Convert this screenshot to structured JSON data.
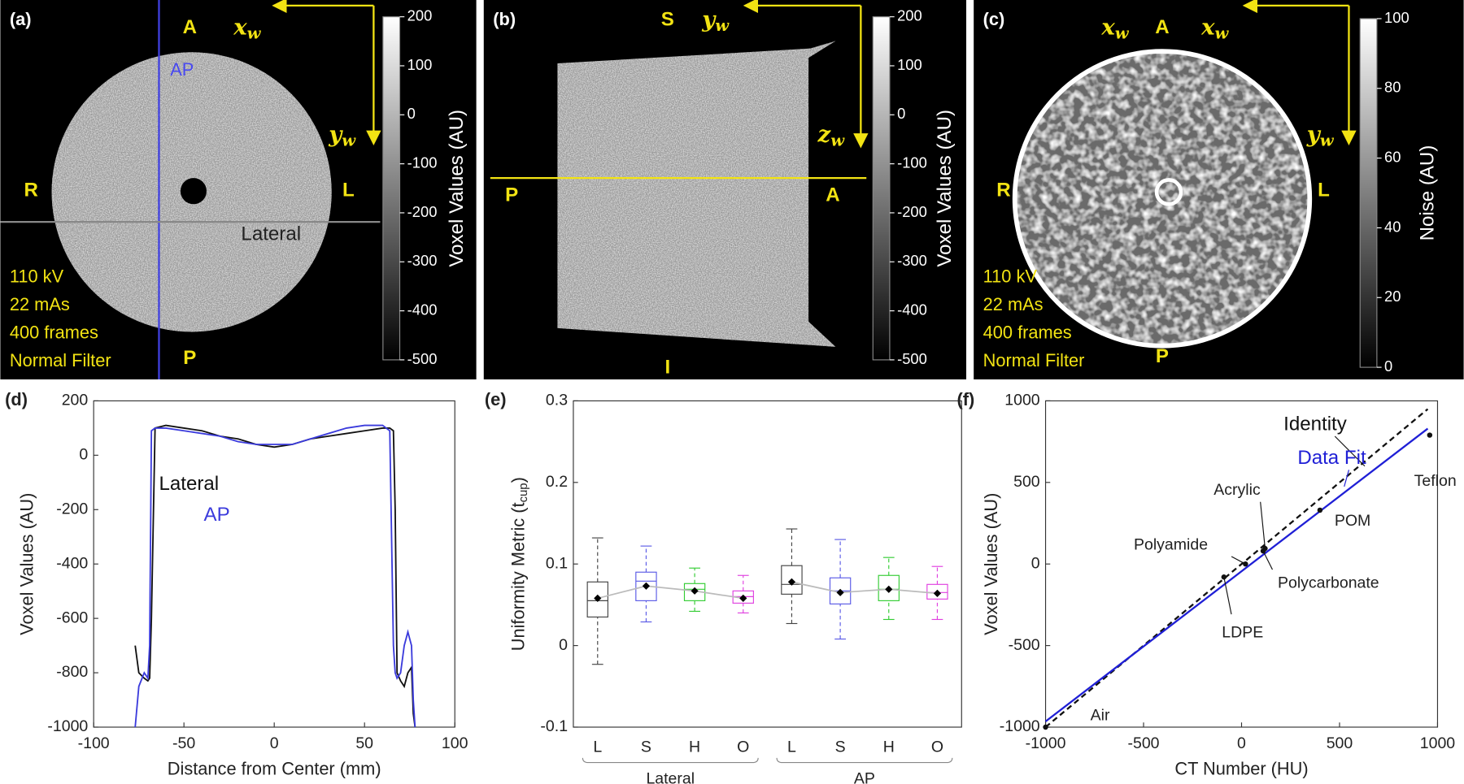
{
  "image_panels": [
    {
      "label": "(a)",
      "orientation": {
        "top": "A",
        "bottom": "P",
        "left": "R",
        "right": "L"
      },
      "axes": [
        {
          "base": "x",
          "sub": "w"
        },
        {
          "base": "y",
          "sub": "w"
        }
      ],
      "line_labels": [
        "AP",
        "Lateral"
      ],
      "scan": [
        "110 kV",
        "22 mAs",
        "400 frames",
        "Normal Filter"
      ],
      "colorbar": {
        "label": "Voxel Values (AU)",
        "lim": [
          -500,
          200
        ],
        "ticks": [
          200,
          100,
          0,
          -100,
          -200,
          -300,
          -400,
          -500
        ]
      }
    },
    {
      "label": "(b)",
      "orientation": {
        "top": "S",
        "bottom": "I",
        "left": "P",
        "right": "A"
      },
      "axes": [
        {
          "base": "y",
          "sub": "w"
        },
        {
          "base": "z",
          "sub": "w"
        }
      ],
      "colorbar": {
        "label": "Voxel Values (AU)",
        "lim": [
          -500,
          200
        ],
        "ticks": [
          200,
          100,
          0,
          -100,
          -200,
          -300,
          -400,
          -500
        ]
      }
    },
    {
      "label": "(c)",
      "orientation": {
        "top": "A",
        "bottom": "P",
        "left": "R",
        "right": "L"
      },
      "axes": [
        {
          "base": "x",
          "sub": "w"
        },
        {
          "base": "x",
          "sub": "w"
        },
        {
          "base": "y",
          "sub": "w"
        }
      ],
      "scan": [
        "110 kV",
        "22 mAs",
        "400 frames",
        "Normal Filter"
      ],
      "colorbar": {
        "label": "Noise (AU)",
        "lim": [
          0,
          100
        ],
        "ticks": [
          100,
          80,
          60,
          40,
          20,
          0
        ]
      }
    }
  ],
  "chart_data": [
    {
      "type": "line",
      "label": "(d)",
      "xlabel": "Distance from Center (mm)",
      "ylabel": "Voxel Values (AU)",
      "x": [
        -77,
        -75,
        -72,
        -70,
        -69,
        -68,
        -66,
        -60,
        -50,
        -40,
        -30,
        -20,
        -10,
        0,
        10,
        20,
        30,
        40,
        50,
        60,
        64,
        66,
        67,
        68,
        70,
        72,
        74,
        76,
        77,
        78
      ],
      "series": [
        {
          "name": "Lateral",
          "color": "#111111",
          "values": [
            -700,
            -800,
            -820,
            -830,
            -820,
            -600,
            100,
            110,
            100,
            90,
            70,
            60,
            40,
            30,
            40,
            60,
            70,
            80,
            90,
            100,
            100,
            90,
            -200,
            -800,
            -830,
            -850,
            -800,
            -780,
            -950,
            -1000
          ]
        },
        {
          "name": "AP",
          "color": "#3b3bdc",
          "values": [
            -1000,
            -850,
            -800,
            -820,
            -700,
            90,
            100,
            100,
            90,
            80,
            70,
            50,
            40,
            40,
            40,
            60,
            80,
            100,
            110,
            110,
            90,
            -700,
            -800,
            -820,
            -800,
            -700,
            -650,
            -700,
            -900,
            -1000
          ]
        }
      ],
      "xlim": [
        -100,
        100
      ],
      "xticks": [
        -100,
        -50,
        0,
        50,
        100
      ],
      "ylim": [
        -1000,
        200
      ],
      "yticks": [
        -1000,
        -800,
        -600,
        -400,
        -200,
        0,
        200
      ]
    },
    {
      "type": "box",
      "label": "(e)",
      "ylabel": {
        "text": "Uniformity Metric (t",
        "sub": "cup",
        "end": ")"
      },
      "colors": [
        "#444444",
        "#5a5ae6",
        "#33cc33",
        "#e040e0"
      ],
      "groups": [
        {
          "name": "Lateral",
          "categories": [
            "L",
            "S",
            "H",
            "O"
          ],
          "low": [
            -0.023,
            0.029,
            0.042,
            0.04
          ],
          "q1": [
            0.035,
            0.055,
            0.055,
            0.052
          ],
          "median": [
            0.055,
            0.079,
            0.069,
            0.06
          ],
          "q3": [
            0.078,
            0.09,
            0.076,
            0.067
          ],
          "high": [
            0.132,
            0.122,
            0.095,
            0.086
          ],
          "mean": [
            0.058,
            0.073,
            0.067,
            0.058
          ]
        },
        {
          "name": "AP",
          "categories": [
            "L",
            "S",
            "H",
            "O"
          ],
          "low": [
            0.027,
            0.008,
            0.032,
            0.032
          ],
          "q1": [
            0.063,
            0.051,
            0.055,
            0.057
          ],
          "median": [
            0.075,
            0.067,
            0.069,
            0.065
          ],
          "q3": [
            0.098,
            0.083,
            0.086,
            0.075
          ],
          "high": [
            0.143,
            0.13,
            0.108,
            0.097
          ],
          "mean": [
            0.078,
            0.065,
            0.069,
            0.064
          ]
        }
      ],
      "ylim": [
        -0.1,
        0.3
      ],
      "yticks": [
        -0.1,
        0,
        0.1,
        0.2,
        0.3
      ]
    },
    {
      "type": "scatter",
      "label": "(f)",
      "xlabel": "CT Number (HU)",
      "ylabel": "Voxel Values (AU)",
      "points": {
        "names": [
          "Air",
          "LDPE",
          "Polyamide",
          "Acrylic",
          "Polycarbonate",
          "POM",
          "Teflon"
        ],
        "x": [
          -1000,
          -90,
          20,
          120,
          110,
          400,
          960
        ],
        "values": [
          -1000,
          -80,
          0,
          95,
          80,
          330,
          790
        ]
      },
      "lines": [
        {
          "name": "Identity",
          "color": "#111111",
          "dashed": true,
          "x": [
            -1000,
            950
          ],
          "values": [
            -1000,
            950
          ]
        },
        {
          "name": "Data Fit",
          "color": "#1f1fd6",
          "dashed": false,
          "x": [
            -1000,
            950
          ],
          "values": [
            -965,
            830
          ]
        }
      ],
      "xlim": [
        -1000,
        1000
      ],
      "xticks": [
        -1000,
        -500,
        0,
        500,
        1000
      ],
      "ylim": [
        -1000,
        1000
      ],
      "yticks": [
        -1000,
        -500,
        0,
        500,
        1000
      ]
    }
  ]
}
